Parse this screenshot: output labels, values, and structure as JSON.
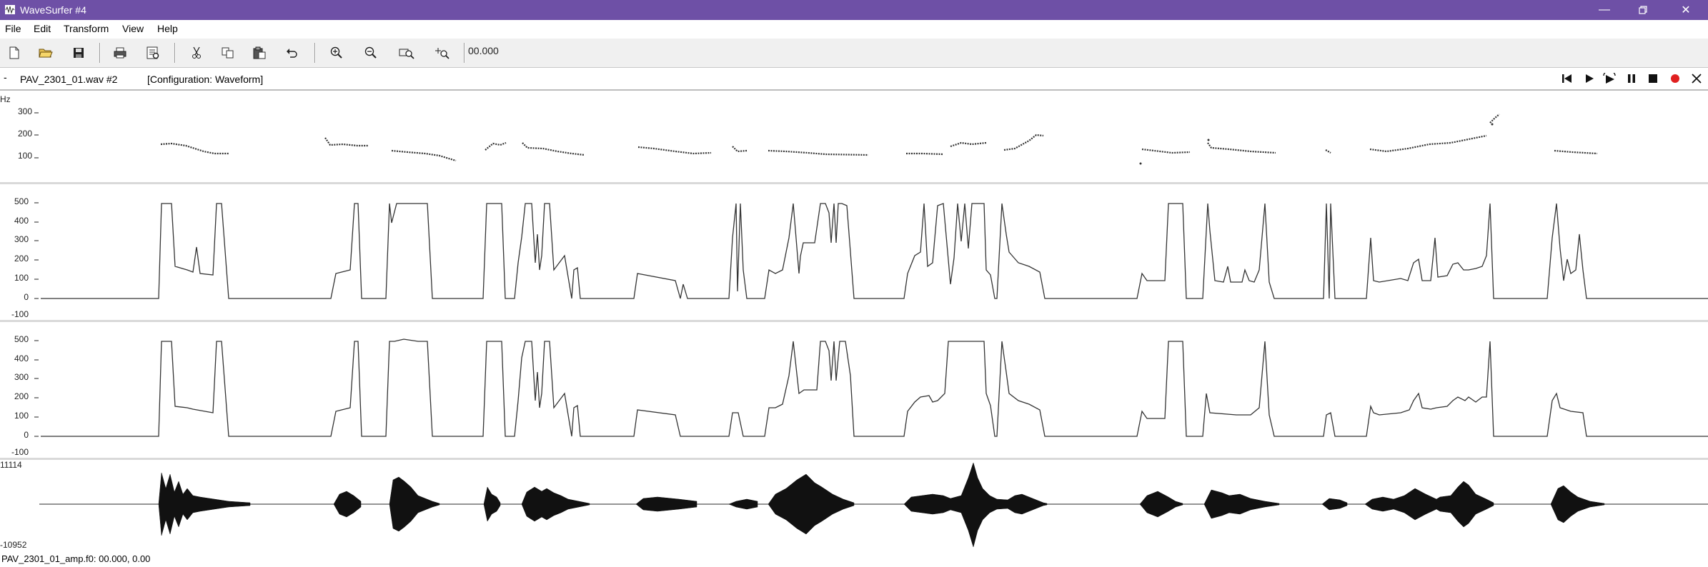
{
  "window": {
    "title": "WaveSurfer #4",
    "controls": [
      "minimize-icon",
      "restore-icon",
      "close-icon"
    ],
    "title_bar_color": "#6e50a6"
  },
  "menu": [
    "File",
    "Edit",
    "Transform",
    "View",
    "Help"
  ],
  "toolbar": {
    "buttons": [
      "new-icon",
      "open-icon",
      "save-icon",
      "print-icon",
      "properties-icon",
      "cut-icon",
      "copy-icon",
      "paste-icon",
      "undo-icon",
      "zoom-in-icon",
      "zoom-out-icon",
      "zoom-fit-icon",
      "zoom-selection-icon"
    ],
    "time_value": "00.000"
  },
  "file_bar": {
    "dash": "-",
    "filename": "PAV_2301_01.wav #2",
    "configuration": "[Configuration: Waveform]",
    "playback_icons": [
      "skip-to-start-icon",
      "play-icon",
      "play-loop-icon",
      "pause-icon",
      "stop-icon",
      "record-icon",
      "close-icon"
    ],
    "record_color": "#e02020"
  },
  "panes": {
    "pitch": {
      "unit": "Hz",
      "ticks": [
        "300",
        "200",
        "100"
      ]
    },
    "curve1": {
      "ticks": [
        "500",
        "400",
        "300",
        "200",
        "100",
        "0",
        "-100"
      ]
    },
    "curve2": {
      "ticks": [
        "500",
        "400",
        "300",
        "200",
        "100",
        "0",
        "-100"
      ]
    },
    "waveform": {
      "max_label": "11114",
      "min_label": "-10952"
    }
  },
  "status": {
    "text": "PAV_2301_01_amp.f0: 00.000, 0.00"
  }
}
